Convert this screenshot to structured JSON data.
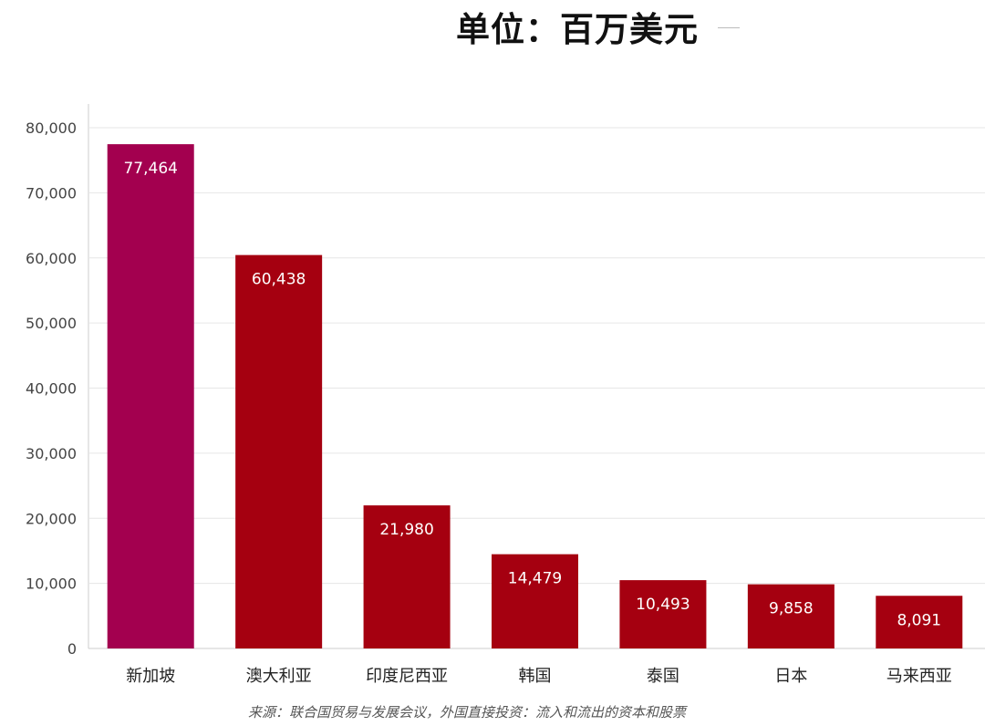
{
  "chart_data": {
    "type": "bar",
    "title": "单位：百万美元",
    "categories": [
      "新加坡",
      "澳大利亚",
      "印度尼西亚",
      "韩国",
      "泰国",
      "日本",
      "马来西亚"
    ],
    "values": [
      77464,
      60438,
      21980,
      14479,
      10493,
      9858,
      8091
    ],
    "value_labels": [
      "77,464",
      "60,438",
      "21,980",
      "14,479",
      "10,493",
      "9,858",
      "8,091"
    ],
    "yticks": [
      0,
      10000,
      20000,
      30000,
      40000,
      50000,
      60000,
      70000,
      80000
    ],
    "ytick_labels": [
      "0",
      "10,000",
      "20,000",
      "30,000",
      "40,000",
      "50,000",
      "60,000",
      "70,000",
      "80,000"
    ],
    "ylim": [
      0,
      80000
    ],
    "xlabel": "",
    "ylabel": "",
    "grid": true,
    "legend": "none",
    "source": "来源：联合国贸易与发展会议，外国直接投资：流入和流出的资本和股票",
    "colors": {
      "highlight": "#A3004F",
      "bar": "#A50010",
      "grid": "#e6e6e6",
      "axis": "#cccccc"
    }
  }
}
